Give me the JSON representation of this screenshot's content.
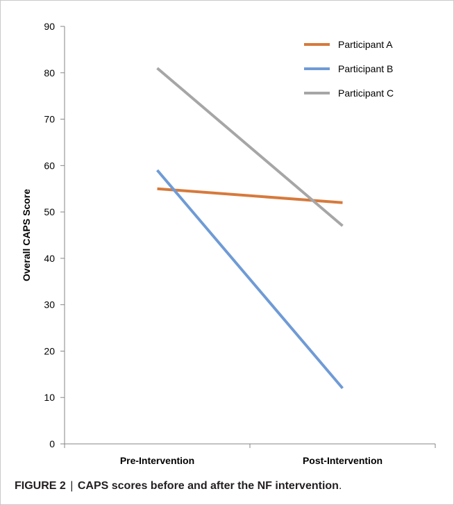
{
  "chart_data": {
    "type": "line",
    "categories": [
      "Pre-Intervention",
      "Post-Intervention"
    ],
    "series": [
      {
        "name": "Participant A",
        "values": [
          55,
          52
        ],
        "color": "#d67a3c"
      },
      {
        "name": "Participant B",
        "values": [
          59,
          12
        ],
        "color": "#6f9bd6"
      },
      {
        "name": "Participant C",
        "values": [
          81,
          47
        ],
        "color": "#a6a6a6"
      }
    ],
    "xlabel": "",
    "ylabel": "Overall CAPS Score",
    "ylim": [
      0,
      90
    ],
    "yticks": [
      0,
      10,
      20,
      30,
      40,
      50,
      60,
      70,
      80,
      90
    ],
    "grid": false,
    "legend": "top-right"
  },
  "caption": {
    "label": "FIGURE 2",
    "separator": "|",
    "text": "CAPS scores before and after the NF intervention",
    "end": "."
  }
}
